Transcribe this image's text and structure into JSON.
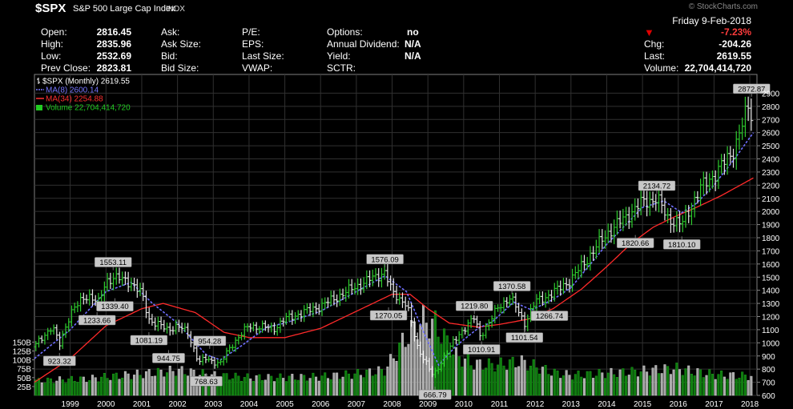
{
  "header": {
    "symbol": "$SPX",
    "index_name": "S&P 500 Large Cap Index",
    "index_type": "INDX",
    "watermark": "© StockCharts.com",
    "date": "Friday  9-Feb-2018",
    "change_pct": "-7.23%",
    "open_label": "Open:",
    "open_value": "2816.45",
    "high_label": "High:",
    "high_value": "2835.96",
    "low_label": "Low:",
    "low_value": "2532.69",
    "prevclose_label": "Prev Close:",
    "prevclose_value": "2823.81",
    "ask_label": "Ask:",
    "asksize_label": "Ask Size:",
    "bid_label": "Bid:",
    "bidsize_label": "Bid Size:",
    "pe_label": "P/E:",
    "eps_label": "EPS:",
    "lastsize_label": "Last Size:",
    "vwap_label": "VWAP:",
    "options_label": "Options:",
    "options_value": "no",
    "dividend_label": "Annual Dividend:",
    "dividend_value": "N/A",
    "yield_label": "Yield:",
    "yield_value": "N/A",
    "sctr_label": "SCTR:",
    "chg_label": "Chg:",
    "chg_value": "-204.26",
    "last_label": "Last:",
    "last_value": "2619.55",
    "volume_label": "Volume:",
    "volume_value": "22,704,414,720"
  },
  "chart_data": {
    "type": "bar",
    "legend": [
      {
        "text": "$SPX (Monthly) 2619.55",
        "color": "#ffffff"
      },
      {
        "text": "MA(8) 2600.14",
        "color": "#7777ff"
      },
      {
        "text": "MA(34) 2254.88",
        "color": "#ff3030"
      },
      {
        "text": "Volume 22,704,414,720",
        "color": "#22cc22"
      }
    ],
    "price_ylim": [
      600,
      3000
    ],
    "price_ticks": [
      600,
      700,
      800,
      900,
      1000,
      1100,
      1200,
      1300,
      1400,
      1500,
      1600,
      1700,
      1800,
      1900,
      2000,
      2100,
      2200,
      2300,
      2400,
      2500,
      2600,
      2700,
      2800,
      2900
    ],
    "volume_ticks": [
      {
        "label": "25B",
        "v": 25
      },
      {
        "label": "50B",
        "v": 50
      },
      {
        "label": "75B",
        "v": 75
      },
      {
        "label": "100B",
        "v": 100
      },
      {
        "label": "125B",
        "v": 125
      },
      {
        "label": "150B",
        "v": 150
      }
    ],
    "volume_ylim": [
      0,
      320
    ],
    "x_range": [
      1998.0,
      2018.2
    ],
    "x_ticks": [
      "1999",
      "2000",
      "2001",
      "2002",
      "2003",
      "2004",
      "2005",
      "2006",
      "2007",
      "2008",
      "2009",
      "2010",
      "2011",
      "2012",
      "2013",
      "2014",
      "2015",
      "2016",
      "2017",
      "2018"
    ],
    "close_anchors": [
      [
        1998.0,
        970
      ],
      [
        1998.5,
        1130
      ],
      [
        1998.7,
        980
      ],
      [
        1999.0,
        1230
      ],
      [
        1999.5,
        1370
      ],
      [
        1999.8,
        1300
      ],
      [
        2000.0,
        1470
      ],
      [
        2000.2,
        1500
      ],
      [
        2000.7,
        1460
      ],
      [
        2001.0,
        1370
      ],
      [
        2001.2,
        1180
      ],
      [
        2001.7,
        1100
      ],
      [
        2002.0,
        1130
      ],
      [
        2002.3,
        1070
      ],
      [
        2002.6,
        850
      ],
      [
        2002.8,
        880
      ],
      [
        2003.2,
        840
      ],
      [
        2003.5,
        980
      ],
      [
        2004.0,
        1130
      ],
      [
        2004.7,
        1110
      ],
      [
        2005.0,
        1180
      ],
      [
        2006.0,
        1280
      ],
      [
        2007.0,
        1430
      ],
      [
        2007.8,
        1540
      ],
      [
        2008.0,
        1380
      ],
      [
        2008.4,
        1300
      ],
      [
        2008.7,
        970
      ],
      [
        2008.9,
        880
      ],
      [
        2009.15,
        740
      ],
      [
        2009.5,
        920
      ],
      [
        2010.0,
        1110
      ],
      [
        2010.3,
        1190
      ],
      [
        2010.45,
        1050
      ],
      [
        2011.0,
        1280
      ],
      [
        2011.3,
        1350
      ],
      [
        2011.7,
        1150
      ],
      [
        2012.0,
        1310
      ],
      [
        2012.5,
        1380
      ],
      [
        2013.0,
        1480
      ],
      [
        2014.0,
        1830
      ],
      [
        2015.0,
        2070
      ],
      [
        2015.4,
        2100
      ],
      [
        2015.7,
        1950
      ],
      [
        2016.1,
        1900
      ],
      [
        2016.6,
        2170
      ],
      [
        2017.0,
        2280
      ],
      [
        2017.5,
        2440
      ],
      [
        2018.0,
        2820
      ],
      [
        2018.1,
        2620
      ]
    ],
    "ma8_anchors": [
      [
        1998.0,
        880
      ],
      [
        1999.0,
        1100
      ],
      [
        2000.0,
        1390
      ],
      [
        2000.7,
        1460
      ],
      [
        2001.3,
        1300
      ],
      [
        2002.0,
        1150
      ],
      [
        2002.8,
        910
      ],
      [
        2003.2,
        870
      ],
      [
        2003.8,
        980
      ],
      [
        2004.5,
        1120
      ],
      [
        2005.0,
        1150
      ],
      [
        2006.0,
        1240
      ],
      [
        2007.0,
        1390
      ],
      [
        2007.8,
        1510
      ],
      [
        2008.4,
        1390
      ],
      [
        2008.9,
        1070
      ],
      [
        2009.3,
        830
      ],
      [
        2009.8,
        980
      ],
      [
        2010.4,
        1110
      ],
      [
        2010.8,
        1160
      ],
      [
        2011.4,
        1310
      ],
      [
        2011.9,
        1250
      ],
      [
        2012.5,
        1330
      ],
      [
        2013.0,
        1420
      ],
      [
        2014.0,
        1750
      ],
      [
        2015.0,
        2030
      ],
      [
        2015.6,
        2080
      ],
      [
        2016.1,
        1990
      ],
      [
        2016.5,
        2060
      ],
      [
        2017.0,
        2200
      ],
      [
        2017.6,
        2410
      ],
      [
        2018.1,
        2600
      ]
    ],
    "ma34_anchors": [
      [
        1998.0,
        700
      ],
      [
        1999.0,
        880
      ],
      [
        2000.0,
        1130
      ],
      [
        2001.0,
        1260
      ],
      [
        2001.6,
        1300
      ],
      [
        2002.5,
        1230
      ],
      [
        2003.3,
        1080
      ],
      [
        2004.0,
        1040
      ],
      [
        2005.0,
        1040
      ],
      [
        2006.0,
        1110
      ],
      [
        2007.0,
        1240
      ],
      [
        2008.0,
        1370
      ],
      [
        2008.5,
        1370
      ],
      [
        2009.0,
        1260
      ],
      [
        2009.6,
        1150
      ],
      [
        2010.4,
        1120
      ],
      [
        2011.0,
        1140
      ],
      [
        2011.8,
        1180
      ],
      [
        2012.5,
        1260
      ],
      [
        2013.3,
        1410
      ],
      [
        2014.0,
        1580
      ],
      [
        2014.7,
        1760
      ],
      [
        2015.3,
        1880
      ],
      [
        2015.9,
        1960
      ],
      [
        2016.5,
        2030
      ],
      [
        2017.2,
        2120
      ],
      [
        2018.1,
        2255
      ]
    ],
    "volume_anchors": [
      [
        1998.0,
        40
      ],
      [
        1998.8,
        44
      ],
      [
        1999.5,
        46
      ],
      [
        2000.0,
        52
      ],
      [
        2001.0,
        60
      ],
      [
        2002.0,
        70
      ],
      [
        2003.0,
        56
      ],
      [
        2004.0,
        50
      ],
      [
        2005.0,
        50
      ],
      [
        2006.0,
        52
      ],
      [
        2007.0,
        60
      ],
      [
        2007.8,
        70
      ],
      [
        2008.3,
        150
      ],
      [
        2008.8,
        210
      ],
      [
        2009.2,
        200
      ],
      [
        2009.8,
        110
      ],
      [
        2010.3,
        88
      ],
      [
        2010.9,
        85
      ],
      [
        2011.6,
        95
      ],
      [
        2012.5,
        64
      ],
      [
        2013.0,
        56
      ],
      [
        2014.0,
        62
      ],
      [
        2015.0,
        68
      ],
      [
        2015.9,
        76
      ],
      [
        2016.5,
        66
      ],
      [
        2017.0,
        58
      ],
      [
        2018.0,
        54
      ]
    ],
    "annotations": [
      {
        "label": "923.32",
        "x": 1998.7,
        "y": 923.32,
        "pos": "below"
      },
      {
        "label": "1233.66",
        "x": 1999.75,
        "y": 1233.66,
        "pos": "below"
      },
      {
        "label": "1339.40",
        "x": 2000.25,
        "y": 1339.4,
        "pos": "below"
      },
      {
        "label": "1553.11",
        "x": 2000.2,
        "y": 1553.11,
        "pos": "above"
      },
      {
        "label": "1081.19",
        "x": 2001.2,
        "y": 1081.19,
        "pos": "below"
      },
      {
        "label": "944.75",
        "x": 2001.75,
        "y": 944.75,
        "pos": "below"
      },
      {
        "label": "954.28",
        "x": 2002.9,
        "y": 954.28,
        "pos": "above"
      },
      {
        "label": "768.63",
        "x": 2002.8,
        "y": 768.63,
        "pos": "below"
      },
      {
        "label": "1576.09",
        "x": 2007.8,
        "y": 1576.09,
        "pos": "above"
      },
      {
        "label": "1270.05",
        "x": 2007.9,
        "y": 1270.05,
        "pos": "below"
      },
      {
        "label": "666.79",
        "x": 2009.2,
        "y": 666.79,
        "pos": "below"
      },
      {
        "label": "1219.80",
        "x": 2010.3,
        "y": 1219.8,
        "pos": "above"
      },
      {
        "label": "1010.91",
        "x": 2010.5,
        "y": 1010.91,
        "pos": "below"
      },
      {
        "label": "1370.58",
        "x": 2011.35,
        "y": 1370.58,
        "pos": "above"
      },
      {
        "label": "1101.54",
        "x": 2011.7,
        "y": 1101.54,
        "pos": "below"
      },
      {
        "label": "1266.74",
        "x": 2012.4,
        "y": 1266.74,
        "pos": "below"
      },
      {
        "label": "2134.72",
        "x": 2015.4,
        "y": 2134.72,
        "pos": "above"
      },
      {
        "label": "1820.66",
        "x": 2014.8,
        "y": 1820.66,
        "pos": "below"
      },
      {
        "label": "1810.10",
        "x": 2016.1,
        "y": 1810.1,
        "pos": "below"
      },
      {
        "label": "2872.87",
        "x": 2018.05,
        "y": 2872.87,
        "pos": "above"
      }
    ]
  }
}
